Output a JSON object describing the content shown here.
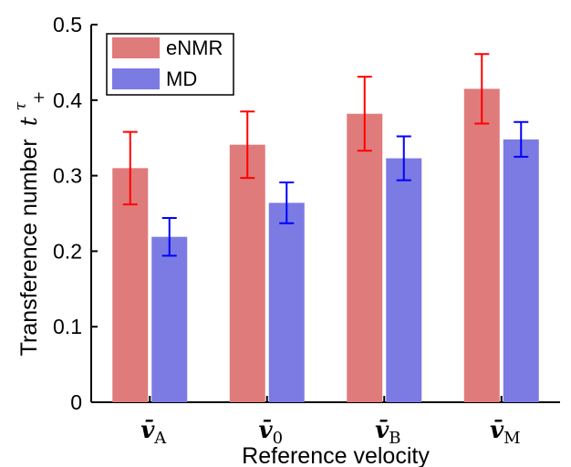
{
  "chart_data": {
    "type": "bar",
    "xlabel": "Reference velocity",
    "ylabel": "Transference number",
    "ylabel_symbol": {
      "base": "t",
      "sup": "τ",
      "sub": "+"
    },
    "ylim": [
      0,
      0.5
    ],
    "yticks": [
      0,
      0.1,
      0.2,
      0.3,
      0.4,
      0.5
    ],
    "ytick_labels": [
      "0",
      "0.1",
      "0.2",
      "0.3",
      "0.4",
      "0.5"
    ],
    "categories": [
      {
        "symbol": "v̄",
        "sub": "A"
      },
      {
        "symbol": "v̄",
        "sub": "0"
      },
      {
        "symbol": "v̄",
        "sub": "B"
      },
      {
        "symbol": "v̄",
        "sub": "M"
      }
    ],
    "series": [
      {
        "name": "eNMR",
        "color": "#e07b7b",
        "error_color": "#ff0000",
        "values": [
          0.31,
          0.341,
          0.382,
          0.415
        ],
        "errors": [
          0.048,
          0.044,
          0.049,
          0.046
        ]
      },
      {
        "name": "MD",
        "color": "#7b7be3",
        "error_color": "#0000ff",
        "values": [
          0.219,
          0.264,
          0.323,
          0.348
        ],
        "errors": [
          0.025,
          0.027,
          0.029,
          0.023
        ]
      }
    ],
    "grid": false,
    "legend_position": "top-left"
  }
}
